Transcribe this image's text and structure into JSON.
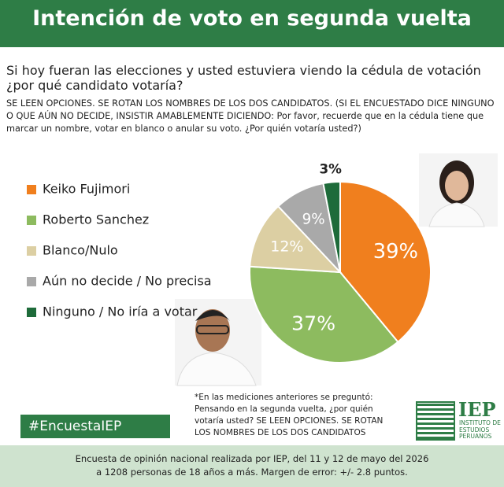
{
  "chart_data": {
    "type": "pie",
    "title": "Intención de voto en segunda vuelta",
    "subtitle": "Si hoy fueran las elecciones y usted estuviera viendo la cédula de votación ¿por qué candidato votaría?",
    "instructions": "SE LEEN OPCIONES. SE ROTAN LOS NOMBRES DE LOS DOS CANDIDATOS. (SI EL ENCUESTADO DICE NINGUNO O QUE AÚN NO DECIDE, INSISTIR AMABLEMENTE DICIENDO: Por favor, recuerde que en la cédula tiene que marcar un nombre, votar en blanco o anular su voto. ¿Por quién votaría usted?)",
    "categories": [
      "Keiko Fujimori",
      "Roberto Sanchez",
      "Blanco/Nulo",
      "Aún no decide / No precisa",
      "Ninguno / No iría a votar"
    ],
    "values": [
      39,
      37,
      12,
      9,
      3
    ],
    "value_labels": [
      "39%",
      "37%",
      "12%",
      "9%",
      "3%"
    ],
    "colors": [
      "#f07f1e",
      "#8dbb5f",
      "#dccfa3",
      "#a9a9a9",
      "#1e6b3a"
    ],
    "legend": "left",
    "note": "*En las mediciones anteriores  se preguntó: Pensando en la segunda vuelta, ¿por quién votaría usted? SE LEEN OPCIONES. SE ROTAN LOS NOMBRES DE LOS DOS CANDIDATOS"
  },
  "hashtag": "#EncuestaIEP",
  "logo": {
    "short": "IEP",
    "long": [
      "INSTITUTO DE",
      "ESTUDIOS",
      "PERUANOS"
    ]
  },
  "footer": [
    "Encuesta de opinión nacional realizada por IEP, del 11 y 12 de mayo del 2026",
    "a 1208 personas de 18 años a más. Margen de error: +/- 2.8 puntos."
  ]
}
